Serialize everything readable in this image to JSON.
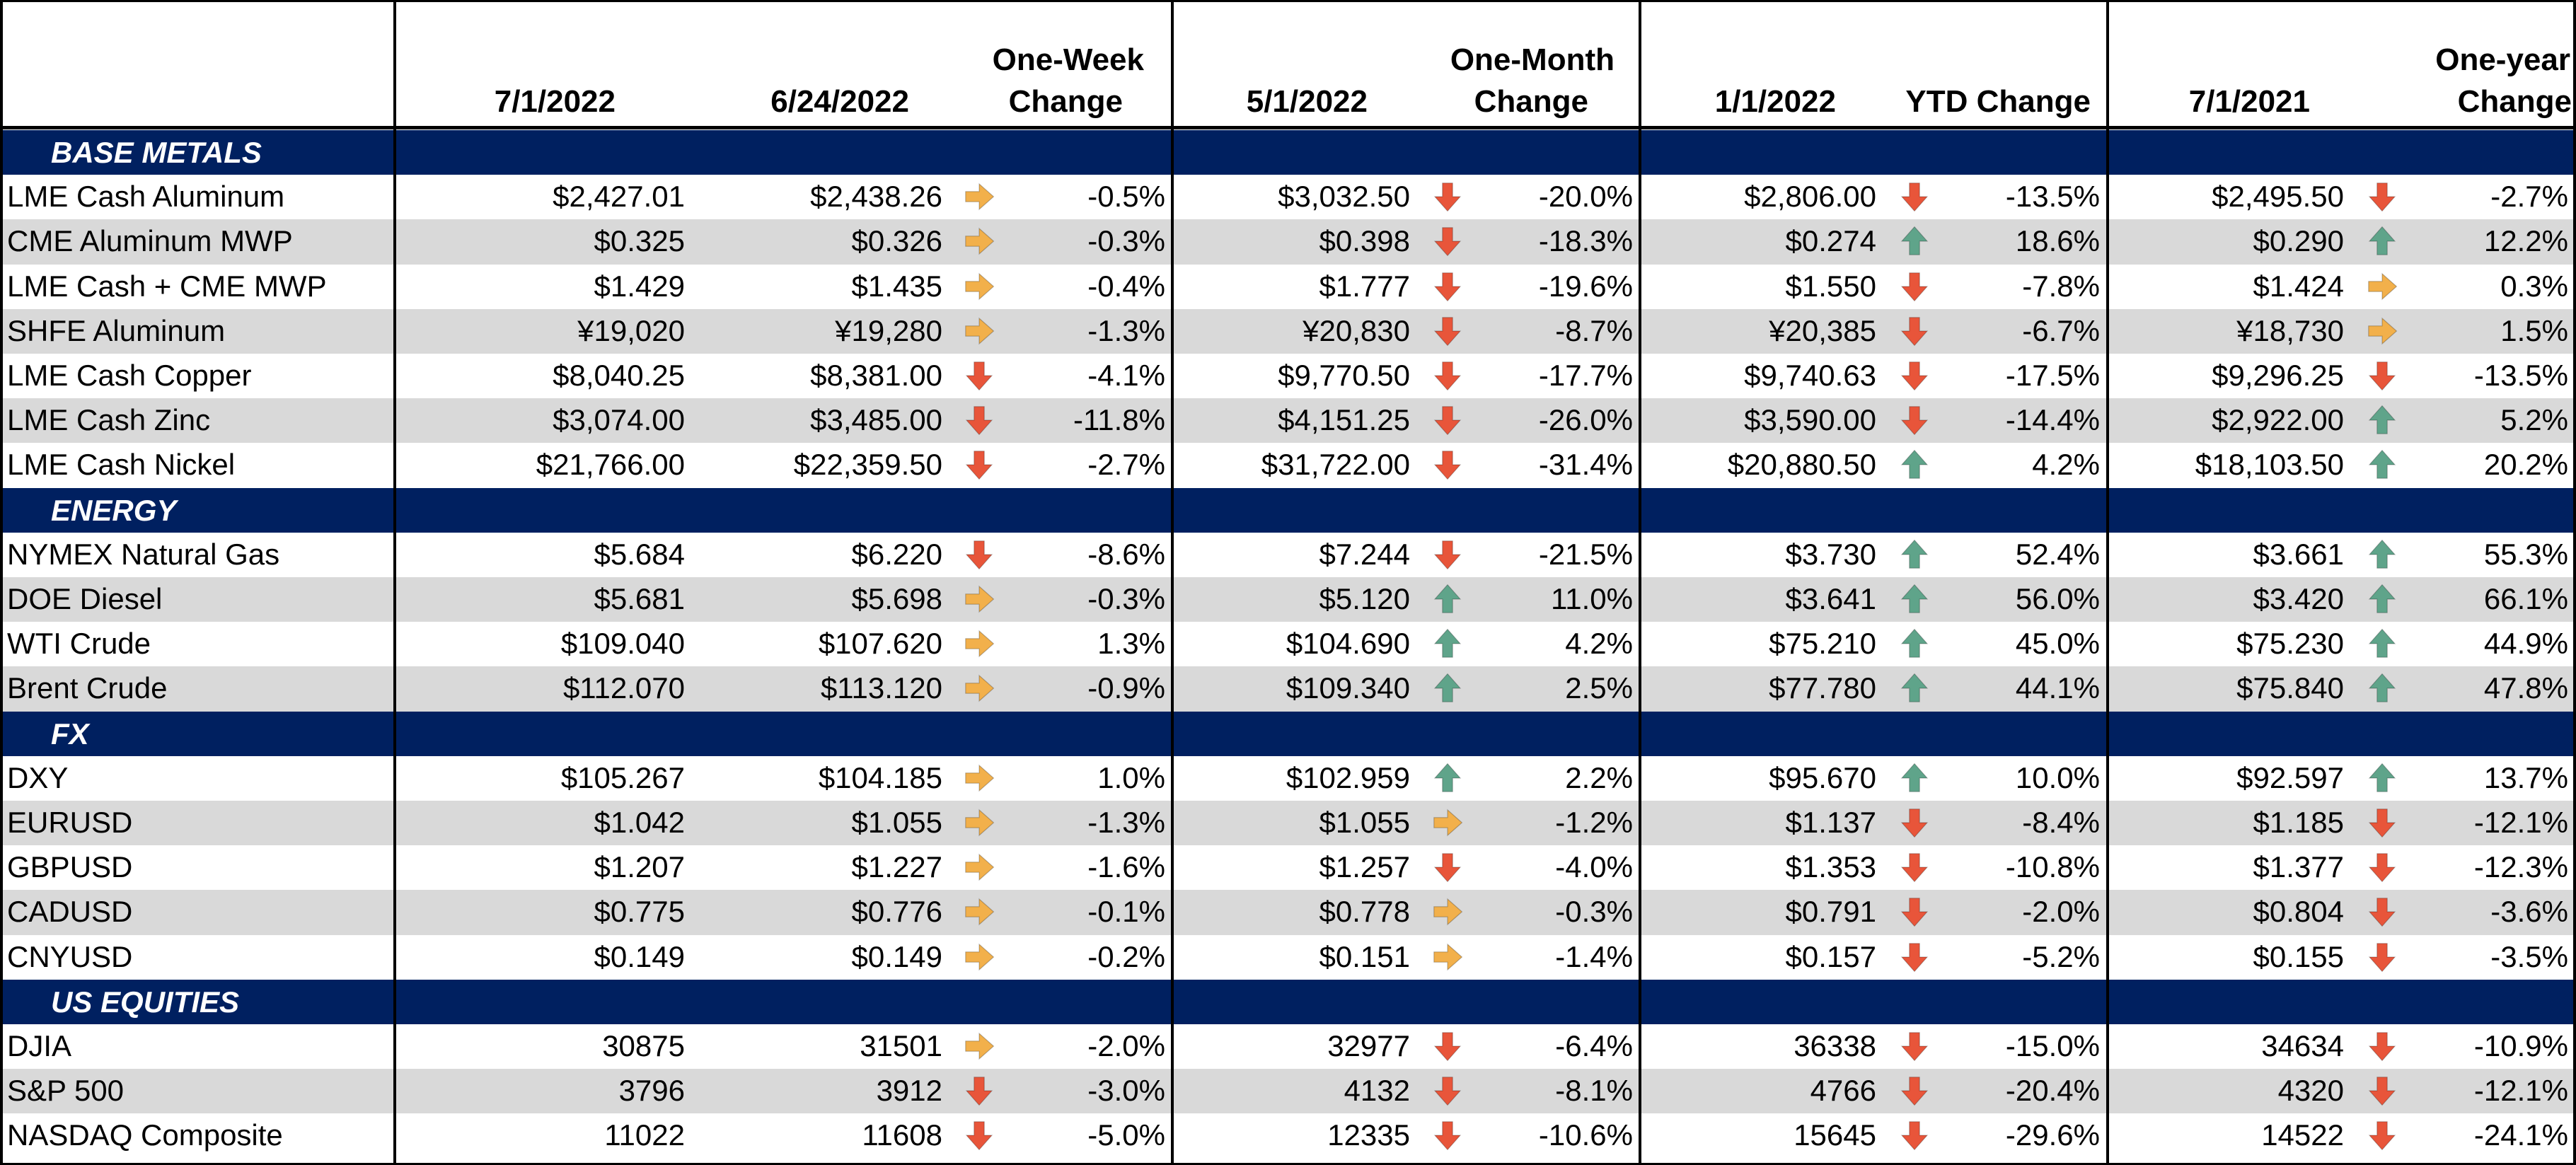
{
  "table": {
    "headers": {
      "c1": "7/1/2022",
      "c2": "6/24/2022",
      "c3_l1": "One-Week",
      "c3_l2": "Change",
      "c4": "5/1/2022",
      "c5_l1": "One-Month",
      "c5_l2": "Change",
      "c6": "1/1/2022",
      "c7": "YTD Change",
      "c8": "7/1/2021",
      "c9_l1": "One-year",
      "c9_l2": "Change"
    },
    "sections": [
      {
        "title": "BASE METALS",
        "rows": [
          {
            "name": "LME Cash Aluminum",
            "v1": "$2,427.01",
            "v2": "$2,438.26",
            "a1": "flat",
            "c1": "-0.5%",
            "v3": "$3,032.50",
            "a2": "down",
            "c2": "-20.0%",
            "v4": "$2,806.00",
            "a3": "down",
            "c3": "-13.5%",
            "v5": "$2,495.50",
            "a4": "down",
            "c4": "-2.7%"
          },
          {
            "name": "CME Aluminum MWP",
            "v1": "$0.325",
            "v2": "$0.326",
            "a1": "flat",
            "c1": "-0.3%",
            "v3": "$0.398",
            "a2": "down",
            "c2": "-18.3%",
            "v4": "$0.274",
            "a3": "up",
            "c3": "18.6%",
            "v5": "$0.290",
            "a4": "up",
            "c4": "12.2%"
          },
          {
            "name": "LME Cash + CME MWP",
            "v1": "$1.429",
            "v2": "$1.435",
            "a1": "flat",
            "c1": "-0.4%",
            "v3": "$1.777",
            "a2": "down",
            "c2": "-19.6%",
            "v4": "$1.550",
            "a3": "down",
            "c3": "-7.8%",
            "v5": "$1.424",
            "a4": "flat",
            "c4": "0.3%"
          },
          {
            "name": "SHFE Aluminum",
            "v1": "¥19,020",
            "v2": "¥19,280",
            "a1": "flat",
            "c1": "-1.3%",
            "v3": "¥20,830",
            "a2": "down",
            "c2": "-8.7%",
            "v4": "¥20,385",
            "a3": "down",
            "c3": "-6.7%",
            "v5": "¥18,730",
            "a4": "flat",
            "c4": "1.5%"
          },
          {
            "name": "LME Cash Copper",
            "v1": "$8,040.25",
            "v2": "$8,381.00",
            "a1": "down",
            "c1": "-4.1%",
            "v3": "$9,770.50",
            "a2": "down",
            "c2": "-17.7%",
            "v4": "$9,740.63",
            "a3": "down",
            "c3": "-17.5%",
            "v5": "$9,296.25",
            "a4": "down",
            "c4": "-13.5%"
          },
          {
            "name": "LME Cash Zinc",
            "v1": "$3,074.00",
            "v2": "$3,485.00",
            "a1": "down",
            "c1": "-11.8%",
            "v3": "$4,151.25",
            "a2": "down",
            "c2": "-26.0%",
            "v4": "$3,590.00",
            "a3": "down",
            "c3": "-14.4%",
            "v5": "$2,922.00",
            "a4": "up",
            "c4": "5.2%"
          },
          {
            "name": "LME Cash Nickel",
            "v1": "$21,766.00",
            "v2": "$22,359.50",
            "a1": "down",
            "c1": "-2.7%",
            "v3": "$31,722.00",
            "a2": "down",
            "c2": "-31.4%",
            "v4": "$20,880.50",
            "a3": "up",
            "c3": "4.2%",
            "v5": "$18,103.50",
            "a4": "up",
            "c4": "20.2%"
          }
        ]
      },
      {
        "title": "ENERGY",
        "rows": [
          {
            "name": "NYMEX Natural Gas",
            "v1": "$5.684",
            "v2": "$6.220",
            "a1": "down",
            "c1": "-8.6%",
            "v3": "$7.244",
            "a2": "down",
            "c2": "-21.5%",
            "v4": "$3.730",
            "a3": "up",
            "c3": "52.4%",
            "v5": "$3.661",
            "a4": "up",
            "c4": "55.3%"
          },
          {
            "name": "DOE Diesel",
            "v1": "$5.681",
            "v2": "$5.698",
            "a1": "flat",
            "c1": "-0.3%",
            "v3": "$5.120",
            "a2": "up",
            "c2": "11.0%",
            "v4": "$3.641",
            "a3": "up",
            "c3": "56.0%",
            "v5": "$3.420",
            "a4": "up",
            "c4": "66.1%"
          },
          {
            "name": "WTI Crude",
            "v1": "$109.040",
            "v2": "$107.620",
            "a1": "flat",
            "c1": "1.3%",
            "v3": "$104.690",
            "a2": "up",
            "c2": "4.2%",
            "v4": "$75.210",
            "a3": "up",
            "c3": "45.0%",
            "v5": "$75.230",
            "a4": "up",
            "c4": "44.9%"
          },
          {
            "name": "Brent Crude",
            "v1": "$112.070",
            "v2": "$113.120",
            "a1": "flat",
            "c1": "-0.9%",
            "v3": "$109.340",
            "a2": "up",
            "c2": "2.5%",
            "v4": "$77.780",
            "a3": "up",
            "c3": "44.1%",
            "v5": "$75.840",
            "a4": "up",
            "c4": "47.8%"
          }
        ]
      },
      {
        "title": "FX",
        "rows": [
          {
            "name": "DXY",
            "v1": "$105.267",
            "v2": "$104.185",
            "a1": "flat",
            "c1": "1.0%",
            "v3": "$102.959",
            "a2": "up",
            "c2": "2.2%",
            "v4": "$95.670",
            "a3": "up",
            "c3": "10.0%",
            "v5": "$92.597",
            "a4": "up",
            "c4": "13.7%"
          },
          {
            "name": "EURUSD",
            "v1": "$1.042",
            "v2": "$1.055",
            "a1": "flat",
            "c1": "-1.3%",
            "v3": "$1.055",
            "a2": "flat",
            "c2": "-1.2%",
            "v4": "$1.137",
            "a3": "down",
            "c3": "-8.4%",
            "v5": "$1.185",
            "a4": "down",
            "c4": "-12.1%"
          },
          {
            "name": "GBPUSD",
            "v1": "$1.207",
            "v2": "$1.227",
            "a1": "flat",
            "c1": "-1.6%",
            "v3": "$1.257",
            "a2": "down",
            "c2": "-4.0%",
            "v4": "$1.353",
            "a3": "down",
            "c3": "-10.8%",
            "v5": "$1.377",
            "a4": "down",
            "c4": "-12.3%"
          },
          {
            "name": "CADUSD",
            "v1": "$0.775",
            "v2": "$0.776",
            "a1": "flat",
            "c1": "-0.1%",
            "v3": "$0.778",
            "a2": "flat",
            "c2": "-0.3%",
            "v4": "$0.791",
            "a3": "down",
            "c3": "-2.0%",
            "v5": "$0.804",
            "a4": "down",
            "c4": "-3.6%"
          },
          {
            "name": "CNYUSD",
            "v1": "$0.149",
            "v2": "$0.149",
            "a1": "flat",
            "c1": "-0.2%",
            "v3": "$0.151",
            "a2": "flat",
            "c2": "-1.4%",
            "v4": "$0.157",
            "a3": "down",
            "c3": "-5.2%",
            "v5": "$0.155",
            "a4": "down",
            "c4": "-3.5%"
          }
        ]
      },
      {
        "title": "US EQUITIES",
        "rows": [
          {
            "name": "DJIA",
            "v1": "30875",
            "v2": "31501",
            "a1": "flat",
            "c1": "-2.0%",
            "v3": "32977",
            "a2": "down",
            "c2": "-6.4%",
            "v4": "36338",
            "a3": "down",
            "c3": "-15.0%",
            "v5": "34634",
            "a4": "down",
            "c4": "-10.9%"
          },
          {
            "name": "S&P 500",
            "v1": "3796",
            "v2": "3912",
            "a1": "down",
            "c1": "-3.0%",
            "v3": "4132",
            "a2": "down",
            "c2": "-8.1%",
            "v4": "4766",
            "a3": "down",
            "c3": "-20.4%",
            "v5": "4320",
            "a4": "down",
            "c4": "-12.1%"
          },
          {
            "name": "NASDAQ Composite",
            "v1": "11022",
            "v2": "11608",
            "a1": "down",
            "c1": "-5.0%",
            "v3": "12335",
            "a2": "down",
            "c2": "-10.6%",
            "v4": "15645",
            "a3": "down",
            "c3": "-29.6%",
            "v5": "14522",
            "a4": "down",
            "c4": "-24.1%"
          }
        ]
      }
    ]
  },
  "colors": {
    "band": "#002060",
    "alt_row": "#d9d9d9",
    "arrow_down": "#e8553a",
    "arrow_up": "#5fa48a",
    "arrow_flat": "#f2b04b"
  }
}
